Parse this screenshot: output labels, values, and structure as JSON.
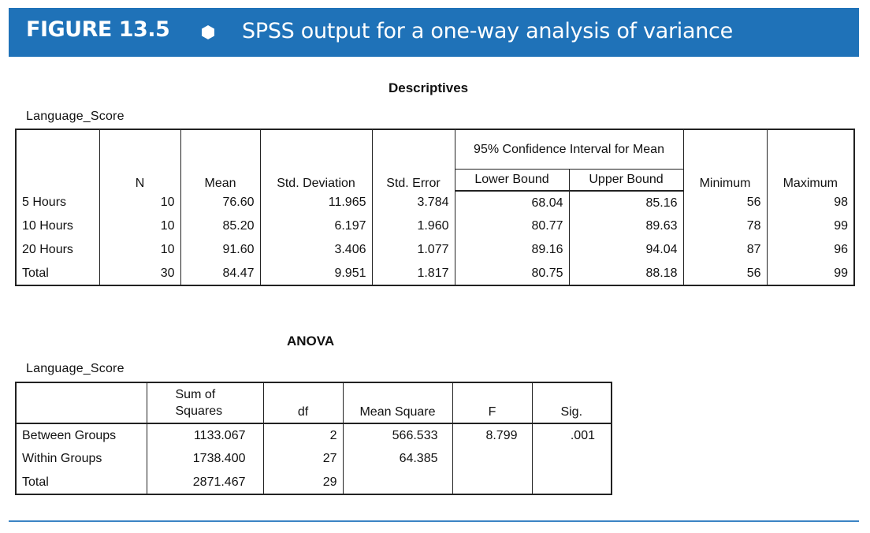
{
  "figure": {
    "label": "FIGURE 13.5",
    "bullet_icon": "hexagon-icon",
    "title": "SPSS output for a one-way analysis of variance",
    "banner_color": "#1f72b8"
  },
  "descriptives": {
    "heading": "Descriptives",
    "variable": "Language_Score",
    "ci_header": "95% Confidence Interval for Mean",
    "columns": [
      "",
      "N",
      "Mean",
      "Std. Deviation",
      "Std. Error",
      "Lower Bound",
      "Upper Bound",
      "Minimum",
      "Maximum"
    ],
    "rows": [
      [
        "5 Hours",
        "10",
        "76.60",
        "11.965",
        "3.784",
        "68.04",
        "85.16",
        "56",
        "98"
      ],
      [
        "10 Hours",
        "10",
        "85.20",
        "6.197",
        "1.960",
        "80.77",
        "89.63",
        "78",
        "99"
      ],
      [
        "20 Hours",
        "10",
        "91.60",
        "3.406",
        "1.077",
        "89.16",
        "94.04",
        "87",
        "96"
      ],
      [
        "Total",
        "30",
        "84.47",
        "9.951",
        "1.817",
        "80.75",
        "88.18",
        "56",
        "99"
      ]
    ]
  },
  "anova": {
    "heading": "ANOVA",
    "variable": "Language_Score",
    "columns": [
      "",
      "Sum of Squares",
      "df",
      "Mean Square",
      "F",
      "Sig."
    ],
    "rows": [
      [
        "Between Groups",
        "1133.067",
        "2",
        "566.533",
        "8.799",
        ".001"
      ],
      [
        "Within Groups",
        "1738.400",
        "27",
        "64.385",
        "",
        ""
      ],
      [
        "Total",
        "2871.467",
        "29",
        "",
        "",
        ""
      ]
    ]
  }
}
